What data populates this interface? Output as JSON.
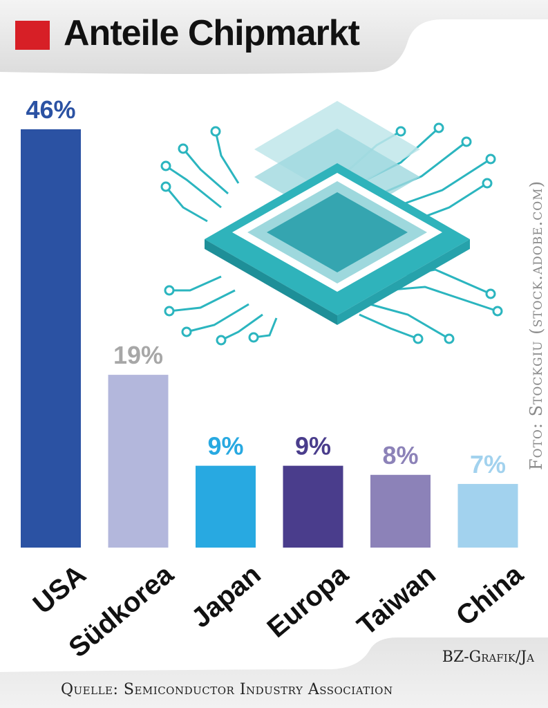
{
  "title": "Anteile Chipmarkt",
  "credit": "Foto: Stockgiu (stock.adobe.com)",
  "footer": {
    "agency": "BZ-Grafik/Ja",
    "source": "Quelle: Semiconductor Industry Association"
  },
  "colors": {
    "title_marker": "#d71f26",
    "header_band": "#e6e6e6"
  },
  "chart_data": {
    "type": "bar",
    "title": "Anteile Chipmarkt",
    "categories": [
      "USA",
      "Südkorea",
      "Japan",
      "Europa",
      "Taiwan",
      "China"
    ],
    "values": [
      46,
      19,
      9,
      9,
      8,
      7
    ],
    "value_labels": [
      "46%",
      "19%",
      "9%",
      "9%",
      "8%",
      "7%"
    ],
    "bar_colors": [
      "#2b52a3",
      "#b3b7dc",
      "#28a9e1",
      "#4a3d8c",
      "#8c82b8",
      "#a2d2ee"
    ],
    "label_colors": [
      "#2b52a3",
      "#a7a7a7",
      "#28a9e1",
      "#4a3d8c",
      "#8c82b8",
      "#a2d2ee"
    ],
    "ylim": [
      0,
      46
    ],
    "grid": false,
    "legend": "none"
  }
}
